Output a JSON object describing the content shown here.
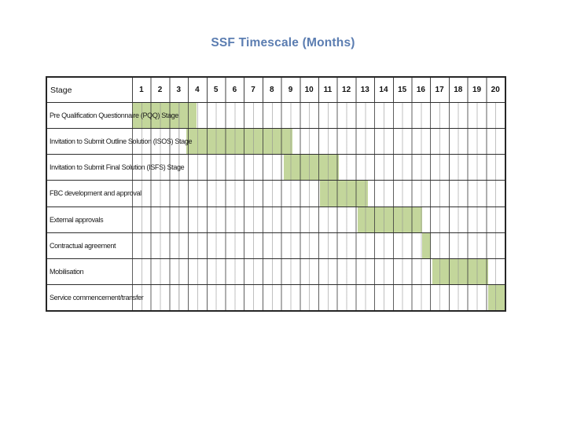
{
  "slide": {
    "title": "SSF Timescale (Months)",
    "title_color": "#5b7db1",
    "background_color": "#ffffff"
  },
  "chart_data": {
    "type": "gantt-table",
    "title": "SSF Timescale (Months)",
    "stage_header": "Stage",
    "months": [
      "1",
      "2",
      "3",
      "4",
      "5",
      "6",
      "7",
      "8",
      "9",
      "10",
      "11",
      "12",
      "13",
      "14",
      "15",
      "16",
      "17",
      "18",
      "19",
      "20"
    ],
    "timeline_range_months": [
      0,
      20
    ],
    "bar_color": "#c3d69b",
    "gridlines": "month boundaries dark, half-month light",
    "legend_position": "none",
    "rows": [
      {
        "label": "Pre Qualification Questionnaire (PQQ) Stage",
        "bar_start_month": 0,
        "bar_end_month": 3.45
      },
      {
        "label": "Invitation to Submit Outline Solution (ISOS) Stage",
        "bar_start_month": 2.9,
        "bar_end_month": 8.6
      },
      {
        "label": "Invitation to Submit Final Solution (ISFS) Stage",
        "bar_start_month": 8.15,
        "bar_end_month": 11.1
      },
      {
        "label": "FBC development and approval",
        "bar_start_month": 10.1,
        "bar_end_month": 12.65
      },
      {
        "label": "External approvals",
        "bar_start_month": 12.1,
        "bar_end_month": 15.55
      },
      {
        "label": "Contractual agreement",
        "bar_start_month": 15.55,
        "bar_end_month": 16.05
      },
      {
        "label": "Mobilisation",
        "bar_start_month": 16.1,
        "bar_end_month": 19.1
      },
      {
        "label": "Service commencement/transfer",
        "bar_start_month": 19.1,
        "bar_end_month": 20
      }
    ]
  }
}
